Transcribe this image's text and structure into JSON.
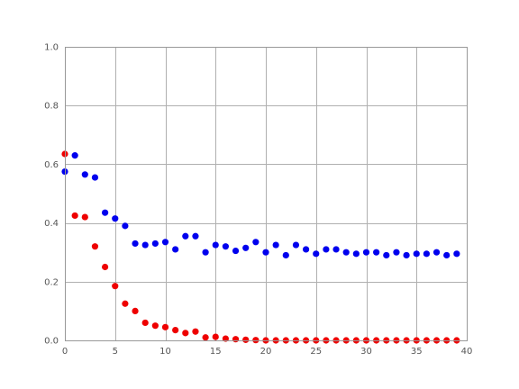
{
  "chart_data": {
    "type": "scatter",
    "title": "",
    "xlabel": "",
    "ylabel": "",
    "xlim": [
      0,
      40
    ],
    "ylim": [
      0,
      1.0
    ],
    "xticks": [
      "0",
      "5",
      "10",
      "15",
      "20",
      "25",
      "30",
      "35",
      "40"
    ],
    "yticks": [
      "0.0",
      "0.2",
      "0.4",
      "0.6",
      "0.8",
      "1.0"
    ],
    "grid": true,
    "legend": "none",
    "series": [
      {
        "color": "#0000ee",
        "x": [
          0,
          1,
          2,
          3,
          4,
          5,
          6,
          7,
          8,
          9,
          10,
          11,
          12,
          13,
          14,
          15,
          16,
          17,
          18,
          19,
          20,
          21,
          22,
          23,
          24,
          25,
          26,
          27,
          28,
          29,
          30,
          31,
          32,
          33,
          34,
          35,
          36,
          37,
          38,
          39
        ],
        "y": [
          0.575,
          0.63,
          0.565,
          0.555,
          0.435,
          0.415,
          0.39,
          0.33,
          0.325,
          0.33,
          0.335,
          0.31,
          0.355,
          0.355,
          0.3,
          0.325,
          0.32,
          0.305,
          0.315,
          0.335,
          0.3,
          0.325,
          0.29,
          0.325,
          0.31,
          0.295,
          0.31,
          0.31,
          0.3,
          0.295,
          0.3,
          0.3,
          0.29,
          0.3,
          0.29,
          0.295,
          0.295,
          0.3,
          0.29,
          0.295
        ]
      },
      {
        "color": "#ee0000",
        "x": [
          0,
          1,
          2,
          3,
          4,
          5,
          6,
          7,
          8,
          9,
          10,
          11,
          12,
          13,
          14,
          15,
          16,
          17,
          18,
          19,
          20,
          21,
          22,
          23,
          24,
          25,
          26,
          27,
          28,
          29,
          30,
          31,
          32,
          33,
          34,
          35,
          36,
          37,
          38,
          39
        ],
        "y": [
          0.635,
          0.425,
          0.42,
          0.32,
          0.25,
          0.185,
          0.125,
          0.1,
          0.06,
          0.05,
          0.045,
          0.035,
          0.025,
          0.03,
          0.01,
          0.012,
          0.006,
          0.004,
          0.002,
          0.001,
          0.0,
          0.0,
          0.0,
          0.0,
          0.0,
          0.0,
          0.0,
          0.0,
          0.0,
          0.0,
          0.0,
          0.0,
          0.0,
          0.0,
          0.0,
          0.0,
          0.0,
          0.0,
          0.0,
          0.0
        ]
      }
    ]
  }
}
